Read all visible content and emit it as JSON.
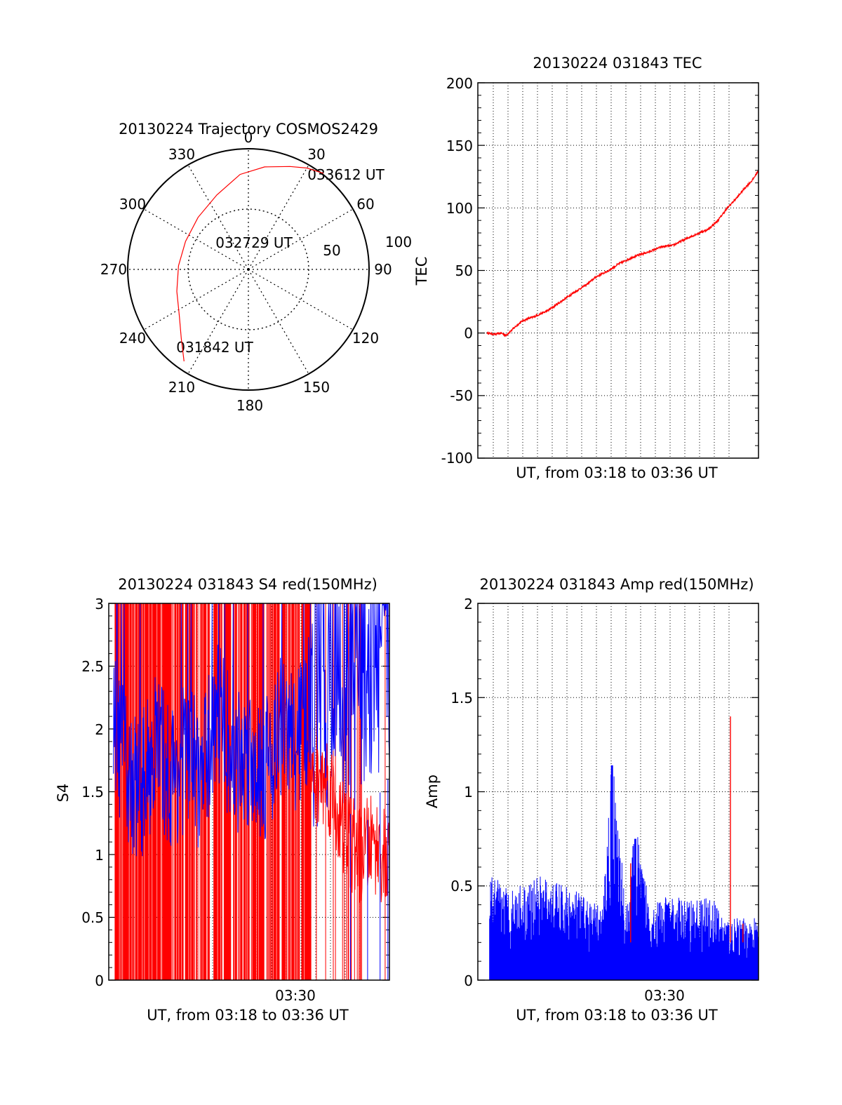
{
  "colors": {
    "red": "#ff0000",
    "blue": "#0000ff",
    "axis": "#000000",
    "grid": "#000000"
  },
  "chart_data": [
    {
      "id": "trajectory",
      "type": "polar",
      "title": "20130224 Trajectory COSMOS2429",
      "angle_labels": [
        "0",
        "30",
        "60",
        "90",
        "120",
        "150",
        "180",
        "210",
        "240",
        "270",
        "300",
        "330"
      ],
      "radial_labels": [
        "50",
        "100"
      ],
      "rlim": [
        0,
        100
      ],
      "grid": true,
      "series": [
        {
          "color": "red",
          "points": [
            [
              215,
              93
            ],
            [
              224,
              80
            ],
            [
              236,
              69
            ],
            [
              253,
              62
            ],
            [
              273,
              58
            ],
            [
              294,
              57
            ],
            [
              316,
              60
            ],
            [
              337,
              67
            ],
            [
              355,
              79
            ],
            [
              9,
              86
            ],
            [
              22,
              92
            ],
            [
              30,
              97
            ],
            [
              38,
              101
            ]
          ]
        }
      ],
      "annotations": [
        {
          "text": "033612 UT",
          "angle": 37,
          "r": 100
        },
        {
          "text": "032729 UT",
          "angle": 349,
          "r": 25
        },
        {
          "text": "031842 UT",
          "angle": 224,
          "r": 96
        }
      ]
    },
    {
      "id": "tec",
      "type": "line",
      "title": "20130224 031843 TEC",
      "xlabel": "UT, from 03:18 to 03:36 UT",
      "ylabel": "TEC",
      "xlim": [
        0,
        18
      ],
      "ylim": [
        -100,
        200
      ],
      "yticks": [
        "200",
        "150",
        "100",
        "50",
        "0",
        "-50",
        "-100"
      ],
      "grid": true,
      "series": [
        {
          "color": "red",
          "points": [
            [
              0.6,
              0
            ],
            [
              1.1,
              -1
            ],
            [
              1.5,
              0
            ],
            [
              1.8,
              -2
            ],
            [
              2.4,
              5
            ],
            [
              2.9,
              10
            ],
            [
              3.6,
              13
            ],
            [
              4.5,
              18
            ],
            [
              5.2,
              24
            ],
            [
              6.0,
              31
            ],
            [
              7.0,
              39
            ],
            [
              7.6,
              45
            ],
            [
              8.4,
              50
            ],
            [
              9.0,
              55
            ],
            [
              10.0,
              61
            ],
            [
              11.0,
              65
            ],
            [
              11.8,
              69
            ],
            [
              12.5,
              70
            ],
            [
              13.3,
              75
            ],
            [
              14.0,
              79
            ],
            [
              14.8,
              83
            ],
            [
              15.4,
              90
            ],
            [
              16.0,
              100
            ],
            [
              16.6,
              108
            ],
            [
              17.2,
              117
            ],
            [
              17.6,
              122
            ],
            [
              18.0,
              130
            ],
            [
              18.2,
              135
            ],
            [
              18.5,
              142
            ]
          ]
        }
      ]
    },
    {
      "id": "s4",
      "type": "line",
      "title": "20130224 031843 S4 red(150MHz)",
      "xlabel": "UT, from 03:18 to 03:36 UT",
      "ylabel": "S4",
      "xlim": [
        0,
        18
      ],
      "ylim": [
        0,
        3
      ],
      "yticks": [
        "3",
        "2.5",
        "2",
        "1.5",
        "1",
        "0.5",
        "0"
      ],
      "xticks": [
        "03:30"
      ],
      "grid": true,
      "series": [
        {
          "name": "",
          "color": "blue",
          "points": [
            [
              0.2,
              2.1
            ],
            [
              1,
              1.7
            ],
            [
              2,
              1.5
            ],
            [
              3,
              1.9
            ],
            [
              4,
              1.6
            ],
            [
              5,
              1.8
            ],
            [
              6,
              1.6
            ],
            [
              7,
              2.2
            ],
            [
              8,
              1.7
            ],
            [
              9,
              1.8
            ],
            [
              10,
              1.7
            ],
            [
              11,
              2.0
            ],
            [
              12,
              1.9
            ],
            [
              13,
              2.2
            ],
            [
              14,
              2.5
            ],
            [
              15,
              2.4
            ],
            [
              16,
              2.6
            ],
            [
              17,
              2.7
            ],
            [
              18,
              2.8
            ]
          ]
        },
        {
          "name": "",
          "color": "red",
          "points": [
            [
              0.2,
              3.0
            ],
            [
              4,
              3.0
            ],
            [
              8,
              2.0
            ],
            [
              12,
              1.5
            ],
            [
              14,
              1.6
            ],
            [
              15,
              1.2
            ],
            [
              16,
              1.0
            ],
            [
              17,
              1.1
            ],
            [
              18,
              0.9
            ]
          ]
        }
      ]
    },
    {
      "id": "amp",
      "type": "line",
      "title": "20130224 031843 Amp red(150MHz)",
      "xlabel": "UT, from 03:18 to 03:36 UT",
      "ylabel": "Amp",
      "xlim": [
        0,
        18
      ],
      "ylim": [
        0,
        2
      ],
      "yticks": [
        "2",
        "1.5",
        "1",
        "0.5",
        "0"
      ],
      "xticks": [
        "03:30"
      ],
      "grid": true,
      "series": [
        {
          "name": "",
          "color": "blue",
          "points": [
            [
              0.2,
              0.55
            ],
            [
              2,
              0.45
            ],
            [
              4,
              0.5
            ],
            [
              6,
              0.45
            ],
            [
              8,
              0.35
            ],
            [
              8.6,
              1.14
            ],
            [
              9.5,
              0.35
            ],
            [
              10.1,
              0.75
            ],
            [
              11,
              0.4
            ],
            [
              13,
              0.4
            ],
            [
              15,
              0.4
            ],
            [
              16,
              0.3
            ],
            [
              17,
              0.3
            ],
            [
              18,
              0.3
            ]
          ]
        },
        {
          "name": "",
          "color": "red",
          "points": [
            [
              9.8,
              0.62
            ],
            [
              16.2,
              1.4
            ],
            [
              17,
              0.3
            ]
          ]
        }
      ]
    }
  ]
}
